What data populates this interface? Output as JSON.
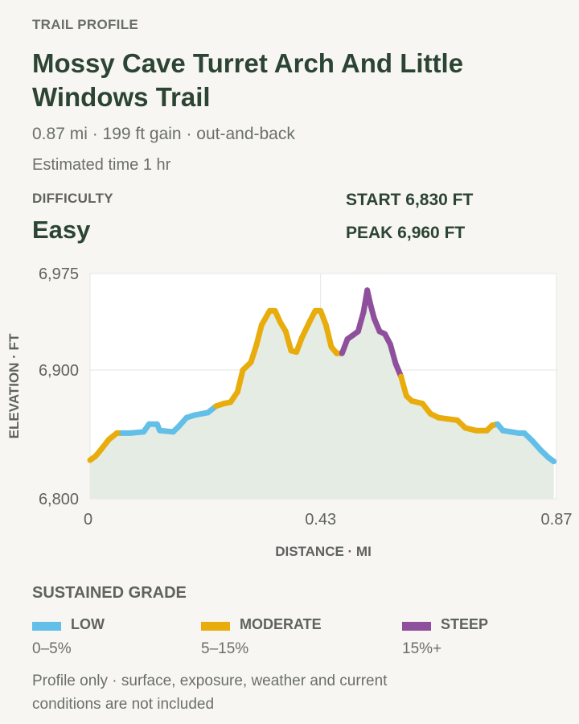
{
  "eyebrow": "TRAIL PROFILE",
  "title": "Mossy Cave Turret Arch And Little Windows Trail",
  "meta": "0.87 mi · 199 ft gain · out-and-back",
  "time": "Estimated time 1 hr",
  "difficulty": {
    "label": "DIFFICULTY",
    "value": "Easy"
  },
  "start": "START 6,830 FT",
  "peak": "PEAK 6,960 FT",
  "legend": {
    "title": "SUSTAINED GRADE",
    "items": [
      {
        "name": "LOW",
        "range": "0–5%",
        "color": "#62bfe8"
      },
      {
        "name": "MODERATE",
        "range": "5–15%",
        "color": "#e8ac0c"
      },
      {
        "name": "STEEP",
        "range": "15%+",
        "color": "#8e4f9c"
      }
    ]
  },
  "footnote": "Profile only · surface, exposure, weather and current conditions are not included",
  "chart_data": {
    "type": "line",
    "xlabel": "DISTANCE · MI",
    "ylabel": "ELEVATION · FT",
    "xlim": [
      0,
      0.87
    ],
    "ylim": [
      6800,
      6975
    ],
    "xticks": [
      0,
      0.43,
      0.87
    ],
    "xtick_labels": [
      "0",
      "0.43",
      "0.87"
    ],
    "yticks": [
      6800,
      6900,
      6975
    ],
    "ytick_labels": [
      "6,800",
      "6,900",
      "6,975"
    ],
    "grid": true,
    "fill_color": "#e5ece4",
    "series": [
      {
        "values": [
          {
            "x": 0.0,
            "y": 6830,
            "grade": "moderate"
          },
          {
            "x": 0.01,
            "y": 6833,
            "grade": "moderate"
          },
          {
            "x": 0.02,
            "y": 6838,
            "grade": "moderate"
          },
          {
            "x": 0.035,
            "y": 6846,
            "grade": "moderate"
          },
          {
            "x": 0.05,
            "y": 6851,
            "grade": "moderate"
          },
          {
            "x": 0.06,
            "y": 6851,
            "grade": "low"
          },
          {
            "x": 0.075,
            "y": 6851,
            "grade": "low"
          },
          {
            "x": 0.1,
            "y": 6852,
            "grade": "low"
          },
          {
            "x": 0.11,
            "y": 6858,
            "grade": "low"
          },
          {
            "x": 0.125,
            "y": 6858,
            "grade": "low"
          },
          {
            "x": 0.13,
            "y": 6853,
            "grade": "low"
          },
          {
            "x": 0.155,
            "y": 6852,
            "grade": "low"
          },
          {
            "x": 0.165,
            "y": 6856,
            "grade": "low"
          },
          {
            "x": 0.18,
            "y": 6863,
            "grade": "low"
          },
          {
            "x": 0.195,
            "y": 6865,
            "grade": "low"
          },
          {
            "x": 0.22,
            "y": 6867,
            "grade": "low"
          },
          {
            "x": 0.235,
            "y": 6872,
            "grade": "moderate"
          },
          {
            "x": 0.25,
            "y": 6874,
            "grade": "moderate"
          },
          {
            "x": 0.262,
            "y": 6875,
            "grade": "moderate"
          },
          {
            "x": 0.275,
            "y": 6883,
            "grade": "moderate"
          },
          {
            "x": 0.285,
            "y": 6900,
            "grade": "moderate"
          },
          {
            "x": 0.3,
            "y": 6906,
            "grade": "moderate"
          },
          {
            "x": 0.31,
            "y": 6919,
            "grade": "moderate"
          },
          {
            "x": 0.32,
            "y": 6935,
            "grade": "moderate"
          },
          {
            "x": 0.335,
            "y": 6946,
            "grade": "moderate"
          },
          {
            "x": 0.345,
            "y": 6946,
            "grade": "moderate"
          },
          {
            "x": 0.355,
            "y": 6937,
            "grade": "moderate"
          },
          {
            "x": 0.365,
            "y": 6930,
            "grade": "moderate"
          },
          {
            "x": 0.375,
            "y": 6915,
            "grade": "moderate"
          },
          {
            "x": 0.385,
            "y": 6914,
            "grade": "moderate"
          },
          {
            "x": 0.395,
            "y": 6925,
            "grade": "moderate"
          },
          {
            "x": 0.41,
            "y": 6938,
            "grade": "moderate"
          },
          {
            "x": 0.42,
            "y": 6946,
            "grade": "moderate"
          },
          {
            "x": 0.43,
            "y": 6946,
            "grade": "moderate"
          },
          {
            "x": 0.44,
            "y": 6935,
            "grade": "moderate"
          },
          {
            "x": 0.45,
            "y": 6918,
            "grade": "moderate"
          },
          {
            "x": 0.46,
            "y": 6913,
            "grade": "moderate"
          },
          {
            "x": 0.47,
            "y": 6913,
            "grade": "steep"
          },
          {
            "x": 0.48,
            "y": 6924,
            "grade": "steep"
          },
          {
            "x": 0.49,
            "y": 6927,
            "grade": "steep"
          },
          {
            "x": 0.5,
            "y": 6930,
            "grade": "steep"
          },
          {
            "x": 0.51,
            "y": 6945,
            "grade": "steep"
          },
          {
            "x": 0.517,
            "y": 6962,
            "grade": "steep"
          },
          {
            "x": 0.523,
            "y": 6951,
            "grade": "steep"
          },
          {
            "x": 0.53,
            "y": 6940,
            "grade": "steep"
          },
          {
            "x": 0.54,
            "y": 6930,
            "grade": "steep"
          },
          {
            "x": 0.55,
            "y": 6928,
            "grade": "steep"
          },
          {
            "x": 0.56,
            "y": 6920,
            "grade": "steep"
          },
          {
            "x": 0.57,
            "y": 6905,
            "grade": "steep"
          },
          {
            "x": 0.58,
            "y": 6895,
            "grade": "moderate"
          },
          {
            "x": 0.59,
            "y": 6880,
            "grade": "moderate"
          },
          {
            "x": 0.6,
            "y": 6876,
            "grade": "moderate"
          },
          {
            "x": 0.62,
            "y": 6874,
            "grade": "moderate"
          },
          {
            "x": 0.635,
            "y": 6866,
            "grade": "moderate"
          },
          {
            "x": 0.65,
            "y": 6863,
            "grade": "moderate"
          },
          {
            "x": 0.685,
            "y": 6861,
            "grade": "moderate"
          },
          {
            "x": 0.7,
            "y": 6855,
            "grade": "moderate"
          },
          {
            "x": 0.72,
            "y": 6853,
            "grade": "moderate"
          },
          {
            "x": 0.74,
            "y": 6853,
            "grade": "moderate"
          },
          {
            "x": 0.75,
            "y": 6857,
            "grade": "moderate"
          },
          {
            "x": 0.76,
            "y": 6858,
            "grade": "low"
          },
          {
            "x": 0.77,
            "y": 6853,
            "grade": "low"
          },
          {
            "x": 0.785,
            "y": 6852,
            "grade": "low"
          },
          {
            "x": 0.8,
            "y": 6851,
            "grade": "low"
          },
          {
            "x": 0.81,
            "y": 6851,
            "grade": "low"
          },
          {
            "x": 0.825,
            "y": 6845,
            "grade": "low"
          },
          {
            "x": 0.84,
            "y": 6838,
            "grade": "low"
          },
          {
            "x": 0.855,
            "y": 6832,
            "grade": "low"
          },
          {
            "x": 0.865,
            "y": 6829,
            "grade": "low"
          }
        ]
      }
    ]
  }
}
